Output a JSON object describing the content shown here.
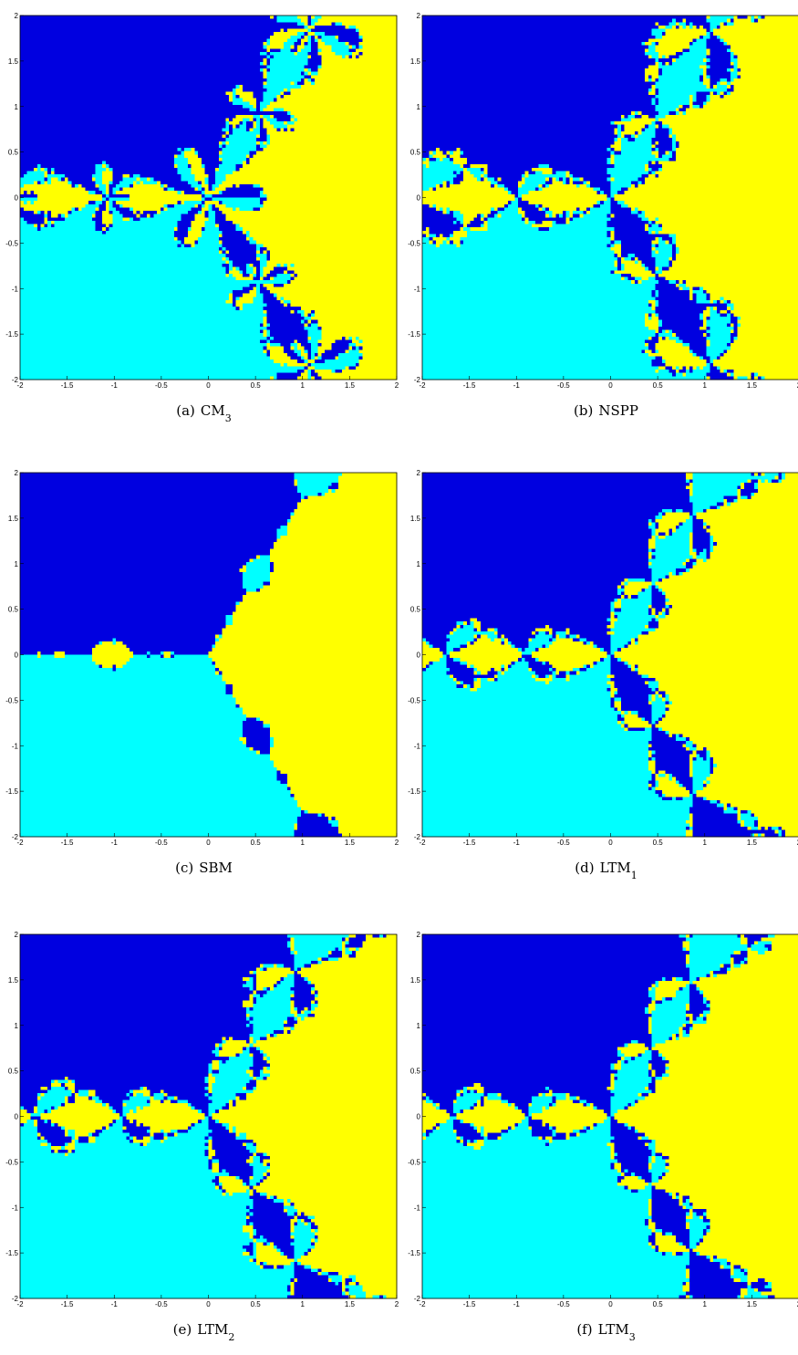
{
  "figure": {
    "panels": [
      {
        "caption": {
          "label": "(a)",
          "name": "CM",
          "subscript": "3"
        },
        "xlim": [
          -2,
          2
        ],
        "ylim": [
          -2,
          2
        ],
        "xticks": [
          -2,
          -1.5,
          -1,
          -0.5,
          0,
          0.5,
          1,
          1.5,
          2
        ],
        "yticks": [
          -2,
          -1.5,
          -1,
          -0.5,
          0,
          0.5,
          1,
          1.5,
          2
        ]
      },
      {
        "caption": {
          "label": "(b)",
          "name": "NSPP"
        },
        "xlim": [
          -2,
          2
        ],
        "ylim": [
          -2,
          2
        ],
        "xticks": [
          -2,
          -1.5,
          -1,
          -0.5,
          0,
          0.5,
          1,
          1.5,
          2
        ],
        "yticks": [
          -2,
          -1.5,
          -1,
          -0.5,
          0,
          0.5,
          1,
          1.5,
          2
        ]
      },
      {
        "caption": {
          "label": "(c)",
          "name": "SBM"
        },
        "xlim": [
          -2,
          2
        ],
        "ylim": [
          -2,
          2
        ],
        "xticks": [
          -2,
          -1.5,
          -1,
          -0.5,
          0,
          0.5,
          1,
          1.5,
          2
        ],
        "yticks": [
          -2,
          -1.5,
          -1,
          -0.5,
          0,
          0.5,
          1,
          1.5,
          2
        ]
      },
      {
        "caption": {
          "label": "(d)",
          "name": "LTM",
          "subscript": "1"
        },
        "xlim": [
          -2,
          2
        ],
        "ylim": [
          -2,
          2
        ],
        "xticks": [
          -2,
          -1.5,
          -1,
          -0.5,
          0,
          0.5,
          1,
          1.5,
          2
        ],
        "yticks": [
          -2,
          -1.5,
          -1,
          -0.5,
          0,
          0.5,
          1,
          1.5,
          2
        ]
      },
      {
        "caption": {
          "label": "(e)",
          "name": "LTM",
          "subscript": "2"
        },
        "xlim": [
          -2,
          2
        ],
        "ylim": [
          -2,
          2
        ],
        "xticks": [
          -2,
          -1.5,
          -1,
          -0.5,
          0,
          0.5,
          1,
          1.5,
          2
        ],
        "yticks": [
          -2,
          -1.5,
          -1,
          -0.5,
          0,
          0.5,
          1,
          1.5,
          2
        ]
      },
      {
        "caption": {
          "label": "(f)",
          "name": "LTM",
          "subscript": "3"
        },
        "xlim": [
          -2,
          2
        ],
        "ylim": [
          -2,
          2
        ],
        "xticks": [
          -2,
          -1.5,
          -1,
          -0.5,
          0,
          0.5,
          1,
          1.5,
          2
        ],
        "yticks": [
          -2,
          -1.5,
          -1,
          -0.5,
          0,
          0.5,
          1,
          1.5,
          2
        ]
      }
    ]
  }
}
